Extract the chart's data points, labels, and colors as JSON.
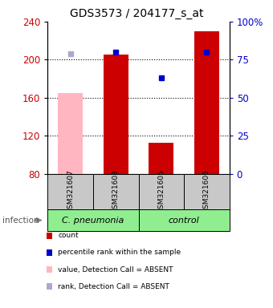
{
  "title": "GDS3573 / 204177_s_at",
  "samples": [
    "GSM321607",
    "GSM321608",
    "GSM321605",
    "GSM321606"
  ],
  "bar_values": [
    165,
    205,
    113,
    230
  ],
  "bar_absent": [
    true,
    false,
    false,
    false
  ],
  "percentile_values": [
    79,
    80,
    63,
    80
  ],
  "percentile_absent": [
    true,
    false,
    false,
    false
  ],
  "y_min": 80,
  "y_max": 240,
  "y_ticks": [
    80,
    120,
    160,
    200,
    240
  ],
  "y_right_ticks": [
    0,
    25,
    50,
    75,
    100
  ],
  "y_right_labels": [
    "0",
    "25",
    "50",
    "75",
    "100%"
  ],
  "bar_color_present": "#CC0000",
  "bar_color_absent": "#FFB6C1",
  "dot_color_present": "#0000CC",
  "dot_color_absent": "#AAAACC",
  "group_names": [
    "C. pneumonia",
    "control"
  ],
  "group_sample_counts": [
    2,
    2
  ],
  "group_bg_color": "#90EE90",
  "sample_bg_color": "#C8C8C8",
  "legend_colors": [
    "#CC0000",
    "#0000CC",
    "#FFB6C1",
    "#AAAACC"
  ],
  "legend_labels": [
    "count",
    "percentile rank within the sample",
    "value, Detection Call = ABSENT",
    "rank, Detection Call = ABSENT"
  ]
}
